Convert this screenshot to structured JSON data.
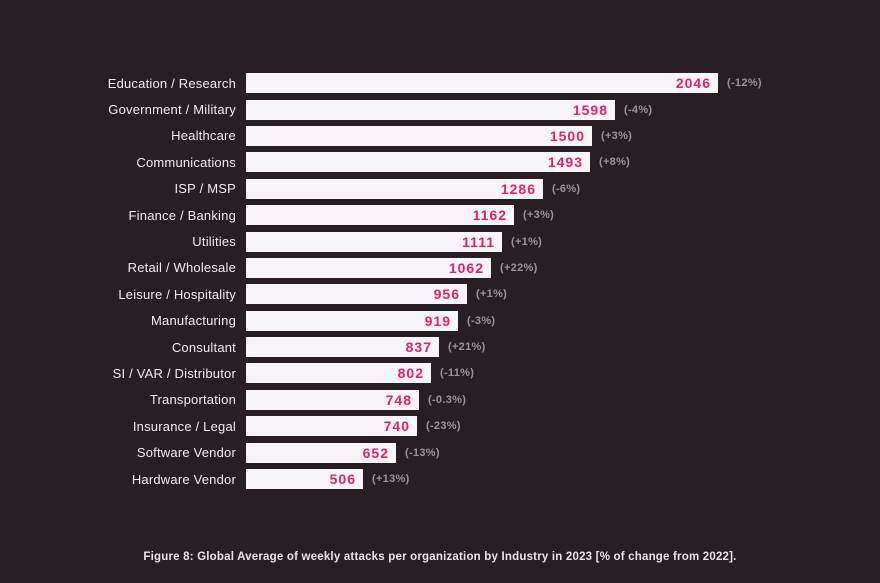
{
  "figure": {
    "caption": "Figure 8: Global Average of weekly attacks per organization by Industry in 2023 [% of change from 2022]."
  },
  "colors": {
    "background": "#271e26",
    "bar_fill": "#f7f5f7",
    "value_text": "#e61e6e",
    "change_text": "#9a959a",
    "label_text": "#f0eef0",
    "caption_text": "#e8e5e8"
  },
  "chart_data": {
    "type": "bar",
    "orientation": "horizontal",
    "title": "Global Average of weekly attacks per organization by Industry in 2023",
    "xlabel": "",
    "ylabel": "",
    "xlim": [
      0,
      2046
    ],
    "grid": false,
    "legend": false,
    "categories": [
      "Education / Research",
      "Government / Military",
      "Healthcare",
      "Communications",
      "ISP / MSP",
      "Finance / Banking",
      "Utilities",
      "Retail / Wholesale",
      "Leisure / Hospitality",
      "Manufacturing",
      "Consultant",
      "SI / VAR / Distributor",
      "Transportation",
      "Insurance / Legal",
      "Software Vendor",
      "Hardware Vendor"
    ],
    "values": [
      2046,
      1598,
      1500,
      1493,
      1286,
      1162,
      1111,
      1062,
      956,
      919,
      837,
      802,
      748,
      740,
      652,
      506
    ],
    "changes": [
      "(-12%)",
      "(-4%)",
      "(+3%)",
      "(+8%)",
      "(-6%)",
      "(+3%)",
      "(+1%)",
      "(+22%)",
      "(+1%)",
      "(-3%)",
      "(+21%)",
      "(-11%)",
      "(-0.3%)",
      "(-23%)",
      "(-13%)",
      "(+13%)"
    ]
  }
}
